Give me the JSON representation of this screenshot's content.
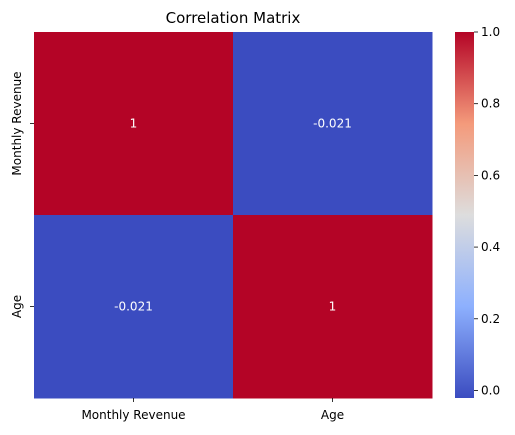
{
  "chart_data": {
    "type": "heatmap",
    "title": "Correlation Matrix",
    "x_categories": [
      "Monthly Revenue",
      "Age"
    ],
    "y_categories": [
      "Monthly Revenue",
      "Age"
    ],
    "values": [
      [
        1,
        -0.021
      ],
      [
        -0.021,
        1
      ]
    ],
    "annotations": [
      [
        "1",
        "-0.021"
      ],
      [
        "-0.021",
        "1"
      ]
    ],
    "colormap": "coolwarm",
    "colormap_stops": [
      "#3b4cc0",
      "#8db0fe",
      "#dddddd",
      "#f49a7b",
      "#b40426"
    ],
    "vmin": -0.021,
    "vmax": 1,
    "colorbar_ticks": [
      0.0,
      0.2,
      0.4,
      0.6,
      0.8,
      1.0
    ],
    "colorbar_tick_labels": [
      "0.0",
      "0.2",
      "0.4",
      "0.6",
      "0.8",
      "1.0"
    ],
    "text_color_on_light": "#262626",
    "text_color_on_dark": "#ffffff"
  }
}
